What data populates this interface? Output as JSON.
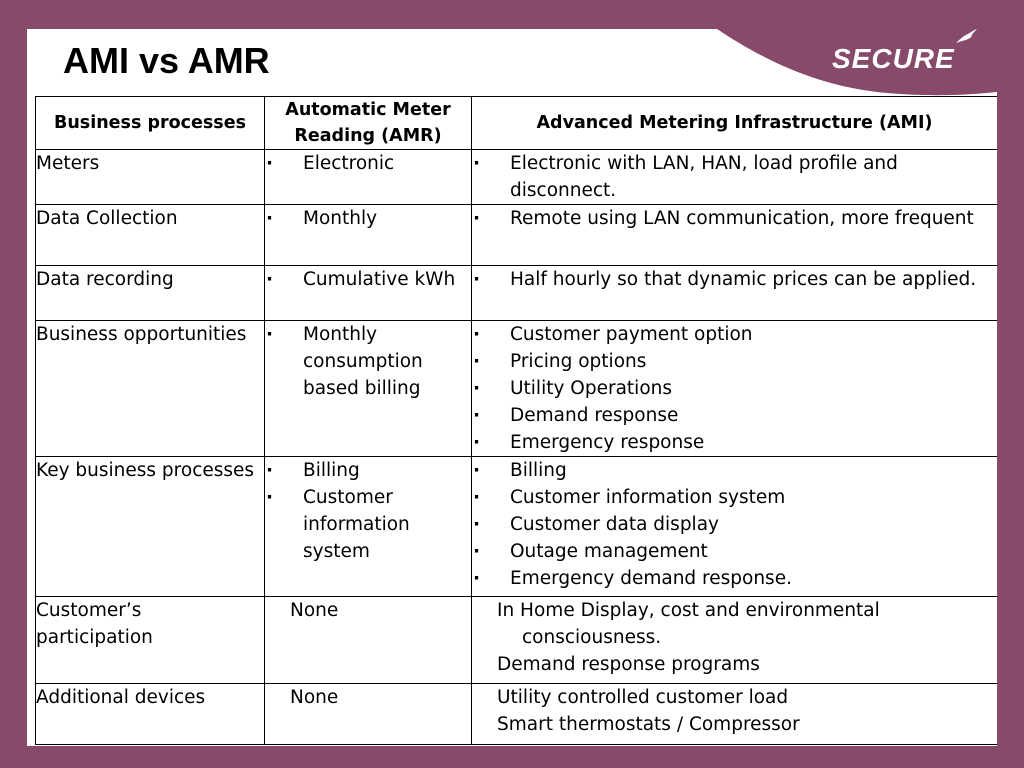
{
  "title": "AMI vs AMR",
  "logo": {
    "text": "SECURE"
  },
  "table": {
    "headers": [
      "Business processes",
      "Automatic Meter Reading (AMR)",
      "Advanced Metering Infrastructure (AMI)"
    ],
    "rows": [
      {
        "process": "Meters",
        "amr": [
          "Electronic"
        ],
        "ami": [
          "Electronic with LAN, HAN, load profile and disconnect."
        ]
      },
      {
        "process": "Data Collection",
        "amr": [
          "Monthly"
        ],
        "ami": [
          "Remote using LAN communication, more frequent"
        ]
      },
      {
        "process": "Data recording",
        "amr": [
          "Cumulative kWh"
        ],
        "ami": [
          "Half hourly so that dynamic prices can be applied."
        ]
      },
      {
        "process": "Business opportunities",
        "amr": [
          "Monthly consumption based billing"
        ],
        "ami": [
          "Customer payment option",
          "Pricing options",
          "Utility Operations",
          "Demand response",
          "Emergency response"
        ]
      },
      {
        "process": "Key business processes",
        "amr": [
          "Billing",
          "Customer information system"
        ],
        "ami": [
          "Billing",
          "Customer information system",
          "Customer data display",
          "Outage management",
          "Emergency demand response."
        ]
      },
      {
        "process": "Customer’s participation",
        "amr_plain": "None",
        "ami_plain": [
          "In Home Display, cost and environmental consciousness.",
          "Demand response programs"
        ]
      },
      {
        "process": "Additional devices",
        "amr_plain": "None",
        "ami_plain": [
          "Utility controlled customer load",
          "Smart thermostats / Compressor"
        ]
      }
    ]
  }
}
